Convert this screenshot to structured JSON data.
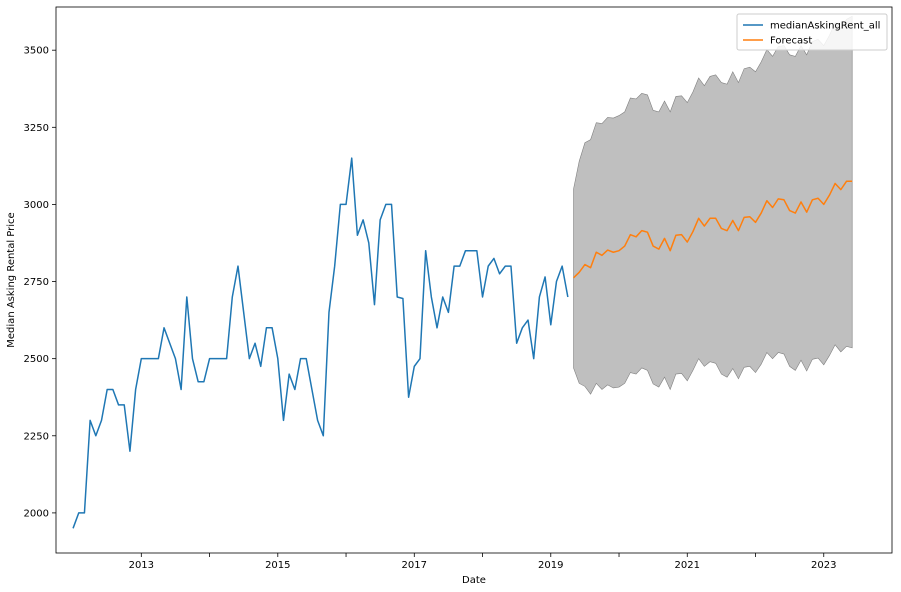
{
  "chart_data": {
    "type": "line",
    "xlabel": "Date",
    "ylabel": "Median Asking Rental Price",
    "xlim": [
      2011.75,
      2024.0
    ],
    "ylim": [
      1870,
      3640
    ],
    "x_ticks": [
      2013,
      2014,
      2015,
      2016,
      2017,
      2018,
      2019,
      2020,
      2021,
      2022,
      2023
    ],
    "x_tick_labels": [
      "2013",
      "",
      "2015",
      "",
      "2017",
      "",
      "2019",
      "",
      "2021",
      "",
      "2023"
    ],
    "y_ticks": [
      2000,
      2250,
      2500,
      2750,
      3000,
      3250,
      3500
    ],
    "y_tick_labels": [
      "2000",
      "2250",
      "2500",
      "2750",
      "3000",
      "3250",
      "3500"
    ],
    "legend": {
      "position": "top-right",
      "entries": [
        "medianAskingRent_all",
        "Forecast"
      ]
    },
    "colors": {
      "actual": "#1f77b4",
      "forecast": "#ff7f0e",
      "band": "#a9a9a9",
      "band_edge": "#808080"
    },
    "actual": {
      "name": "medianAskingRent_all",
      "start": "2012-01",
      "values": [
        1950,
        2000,
        2000,
        2300,
        2250,
        2300,
        2400,
        2400,
        2350,
        2350,
        2200,
        2400,
        2500,
        2500,
        2500,
        2500,
        2600,
        2550,
        2500,
        2400,
        2700,
        2500,
        2425,
        2425,
        2500,
        2500,
        2500,
        2500,
        2700,
        2800,
        2650,
        2500,
        2550,
        2475,
        2600,
        2600,
        2500,
        2300,
        2450,
        2400,
        2500,
        2500,
        2400,
        2300,
        2250,
        2650,
        2800,
        3000,
        3000,
        3150,
        2900,
        2950,
        2875,
        2675,
        2950,
        3000,
        3000,
        2700,
        2695,
        2375,
        2475,
        2500,
        2850,
        2700,
        2600,
        2700,
        2650,
        2800,
        2800,
        2850,
        2850,
        2850,
        2700,
        2800,
        2825,
        2775,
        2800,
        2800,
        2550,
        2600,
        2625,
        2500,
        2700,
        2765,
        2610,
        2750,
        2800,
        2700
      ]
    },
    "forecast": {
      "name": "Forecast",
      "start": "2019-05",
      "values": [
        2762,
        2780,
        2805,
        2795,
        2845,
        2835,
        2852,
        2845,
        2850,
        2865,
        2902,
        2895,
        2915,
        2910,
        2865,
        2855,
        2890,
        2850,
        2900,
        2902,
        2878,
        2912,
        2955,
        2930,
        2955,
        2955,
        2922,
        2915,
        2948,
        2915,
        2958,
        2960,
        2942,
        2972,
        3012,
        2990,
        3018,
        3015,
        2980,
        2972,
        3008,
        2975,
        3015,
        3020,
        3000,
        3030,
        3068,
        3048,
        3075,
        3075
      ],
      "upper": [
        3050,
        3140,
        3200,
        3210,
        3265,
        3262,
        3282,
        3280,
        3288,
        3300,
        3345,
        3342,
        3360,
        3355,
        3305,
        3300,
        3335,
        3300,
        3350,
        3352,
        3330,
        3365,
        3410,
        3385,
        3415,
        3420,
        3395,
        3390,
        3430,
        3395,
        3440,
        3445,
        3430,
        3462,
        3502,
        3480,
        3512,
        3515,
        3485,
        3480,
        3515,
        3485,
        3528,
        3535,
        3515,
        3548,
        3590,
        3570,
        3600,
        3610
      ],
      "lower": [
        2470,
        2420,
        2410,
        2385,
        2420,
        2400,
        2415,
        2405,
        2408,
        2420,
        2455,
        2450,
        2470,
        2462,
        2418,
        2408,
        2440,
        2400,
        2450,
        2452,
        2428,
        2462,
        2500,
        2475,
        2490,
        2485,
        2450,
        2440,
        2468,
        2435,
        2472,
        2475,
        2455,
        2482,
        2520,
        2500,
        2520,
        2515,
        2475,
        2462,
        2495,
        2460,
        2498,
        2502,
        2480,
        2510,
        2545,
        2522,
        2540,
        2535
      ]
    }
  }
}
